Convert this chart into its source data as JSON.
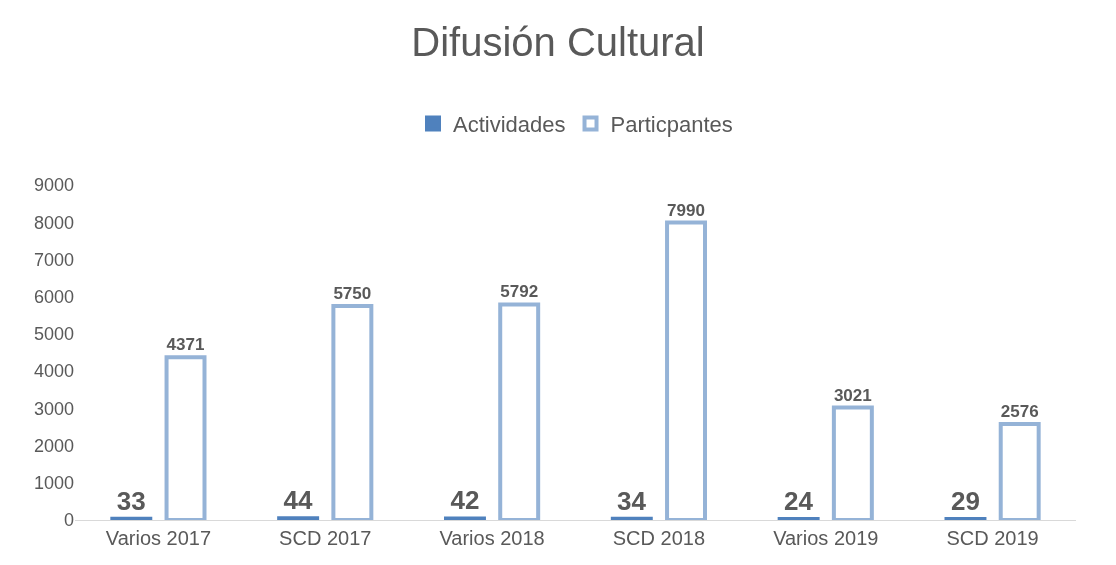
{
  "chart_data": {
    "type": "bar",
    "title": "Difusión Cultural",
    "categories": [
      "Varios 2017",
      "SCD 2017",
      "Varios 2018",
      "SCD 2018",
      "Varios 2019",
      "SCD 2019"
    ],
    "series": [
      {
        "name": "Actividades",
        "color": "#4f81bd",
        "values": [
          33,
          44,
          42,
          34,
          24,
          29
        ]
      },
      {
        "name": "Particpantes",
        "color": "#95b3d7",
        "values": [
          4371,
          5750,
          5792,
          7990,
          3021,
          2576
        ]
      }
    ],
    "ylim": [
      0,
      9000
    ],
    "yticks": [
      0,
      1000,
      2000,
      3000,
      4000,
      5000,
      6000,
      7000,
      8000,
      9000
    ],
    "grid": false,
    "legend": "top",
    "data_labels": true
  }
}
